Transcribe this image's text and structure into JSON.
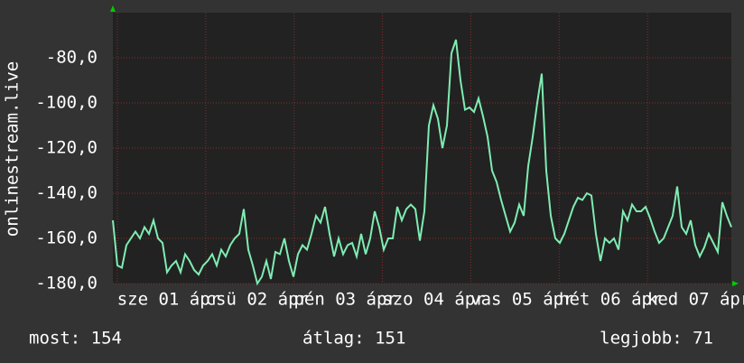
{
  "chart_data": {
    "type": "line",
    "y_label": "onlinestream.live",
    "x_labels": [
      "sze 01 ápr",
      "csü 02 ápr",
      "pén 03 ápr",
      "szo 04 ápr",
      "vas 05 ápr",
      "hét 06 ápr",
      "ked 07 ápr"
    ],
    "series": [
      {
        "name": "onlinestream.live",
        "color": "#7fecb2",
        "values": [
          -152,
          -172,
          -173,
          -163,
          -160,
          -157,
          -160,
          -155,
          -158,
          -152,
          -160,
          -162,
          -175,
          -172,
          -170,
          -175,
          -167,
          -170,
          -174,
          -176,
          -172,
          -170,
          -167,
          -172,
          -165,
          -168,
          -163,
          -160,
          -158,
          -147,
          -165,
          -172,
          -180,
          -177,
          -170,
          -178,
          -166,
          -167,
          -160,
          -170,
          -177,
          -167,
          -163,
          -165,
          -158,
          -150,
          -153,
          -146,
          -158,
          -168,
          -160,
          -167,
          -163,
          -162,
          -168,
          -158,
          -167,
          -160,
          -148,
          -155,
          -165,
          -160,
          -160,
          -146,
          -152,
          -147,
          -145,
          -147,
          -161,
          -148,
          -110,
          -101,
          -107,
          -120,
          -110,
          -78,
          -72,
          -90,
          -103,
          -102,
          -104,
          -98,
          -106,
          -115,
          -130,
          -135,
          -143,
          -150,
          -157,
          -153,
          -145,
          -150,
          -128,
          -115,
          -100,
          -87,
          -130,
          -150,
          -160,
          -162,
          -158,
          -152,
          -146,
          -142,
          -143,
          -140,
          -141,
          -158,
          -170,
          -160,
          -162,
          -160,
          -165,
          -148,
          -152,
          -145,
          -148,
          -148,
          -146,
          -151,
          -157,
          -162,
          -160,
          -155,
          -150,
          -137,
          -155,
          -158,
          -152,
          -163,
          -168,
          -164,
          -158,
          -162,
          -166,
          -144,
          -150,
          -155
        ]
      }
    ],
    "ylim": [
      -180,
      -60
    ],
    "yticks": [
      {
        "value": -180,
        "label": "-180,0"
      },
      {
        "value": -160,
        "label": "-160,0"
      },
      {
        "value": -140,
        "label": "-140,0"
      },
      {
        "value": -120,
        "label": "-120,0"
      },
      {
        "value": -100,
        "label": "-100,0"
      },
      {
        "value": -80,
        "label": "-80,0"
      }
    ],
    "grid": true,
    "footer": {
      "current": "most: 154",
      "average": "átlag: 151",
      "best": "legjobb: 71"
    }
  }
}
